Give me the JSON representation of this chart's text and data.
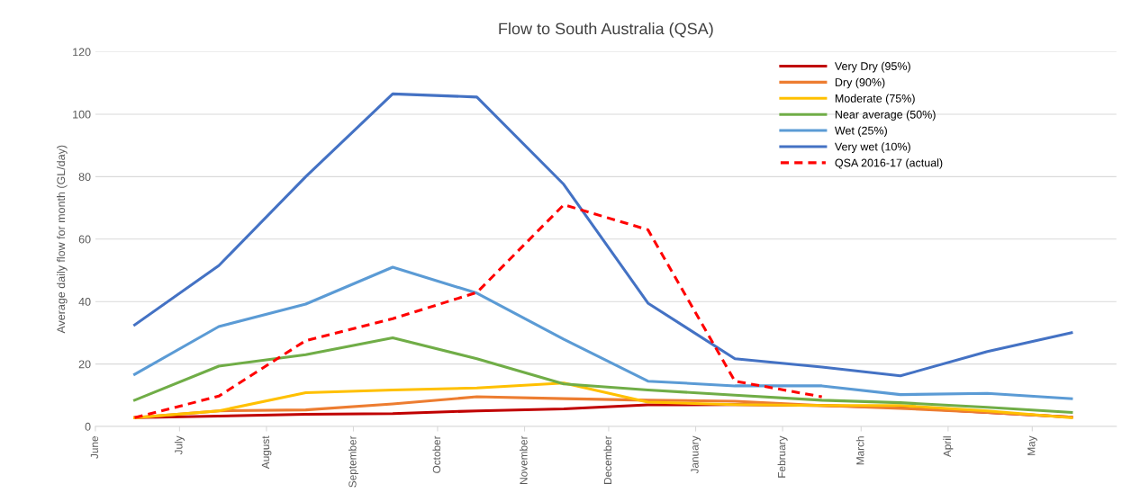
{
  "chart_data": {
    "type": "line",
    "title": "Flow to South Australia (QSA)",
    "ylabel": "Average daily flow for month (GL/day)",
    "x": [
      "2016-06-15",
      "2016-07-15",
      "2016-08-15",
      "2016-09-15",
      "2016-10-15",
      "2016-11-15",
      "2016-12-15",
      "2017-01-15",
      "2017-02-15",
      "2017-03-15",
      "2017-04-15",
      "2017-05-15"
    ],
    "series": [
      {
        "name": "Very Dry (95%)",
        "color": "#c00000",
        "values": [
          2.8,
          3.3,
          3.9,
          4.1,
          5,
          5.6,
          6.9,
          7,
          6.7,
          6.1,
          4.5,
          3
        ]
      },
      {
        "name": "Dry (90%)",
        "color": "#ed7d31",
        "values": [
          2.8,
          5,
          5.3,
          7.2,
          9.5,
          8.9,
          8.4,
          8.1,
          6.7,
          5.8,
          4.5,
          3
        ]
      },
      {
        "name": "Moderate (75%)",
        "color": "#ffc000",
        "values": [
          2.8,
          5,
          10.8,
          11.7,
          12.3,
          13.9,
          7.8,
          7,
          6.7,
          6.7,
          5,
          2.8
        ]
      },
      {
        "name": "Near average (50%)",
        "color": "#70ad47",
        "values": [
          8.4,
          19.3,
          23,
          28.4,
          21.7,
          13.6,
          11.7,
          10,
          8.4,
          7.6,
          6.1,
          4.5
        ]
      },
      {
        "name": "Wet (25%)",
        "color": "#5b9bd5",
        "values": [
          16.7,
          32,
          39.2,
          51,
          42.7,
          27.9,
          14.5,
          13,
          13,
          10.2,
          10.6,
          8.9
        ]
      },
      {
        "name": "Very wet (10%)",
        "color": "#4472c4",
        "values": [
          32.5,
          51.5,
          80,
          106.5,
          105.5,
          77.5,
          39.5,
          21.7,
          19,
          16.2,
          24,
          30
        ]
      },
      {
        "name": "QSA 2016-17 (actual)",
        "color": "#ff0000",
        "line_style": "dashed",
        "values": [
          2.8,
          9.7,
          27.5,
          34.5,
          42.9,
          71,
          63,
          14.5,
          9.5,
          null,
          null,
          null
        ]
      }
    ],
    "xlim": [
      "2016-06-01",
      "2017-05-31"
    ],
    "xticks": [
      {
        "value": "2016-06-01",
        "label": "June"
      },
      {
        "value": "2016-07-01",
        "label": "July"
      },
      {
        "value": "2016-08-01",
        "label": "August"
      },
      {
        "value": "2016-09-01",
        "label": "September"
      },
      {
        "value": "2016-10-01",
        "label": "October"
      },
      {
        "value": "2016-11-01",
        "label": "November"
      },
      {
        "value": "2016-12-01",
        "label": "December"
      },
      {
        "value": "2017-01-01",
        "label": "January"
      },
      {
        "value": "2017-02-01",
        "label": "February"
      },
      {
        "value": "2017-03-01",
        "label": "March"
      },
      {
        "value": "2017-04-01",
        "label": "April"
      },
      {
        "value": "2017-05-01",
        "label": "May"
      }
    ],
    "ylim": [
      0,
      120
    ],
    "yticks": [
      0,
      20,
      40,
      60,
      80,
      100,
      120
    ],
    "grid": "y",
    "legend": "top right",
    "line_style": "solid",
    "marker": "none"
  }
}
